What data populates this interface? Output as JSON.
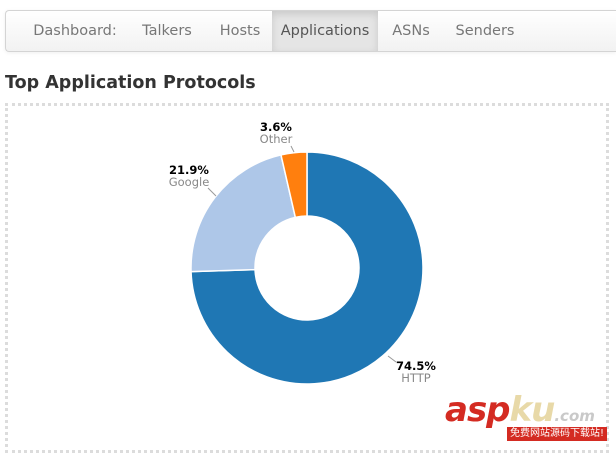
{
  "nav": {
    "items": [
      {
        "label": "Dashboard:",
        "active": false
      },
      {
        "label": "Talkers",
        "active": false
      },
      {
        "label": "Hosts",
        "active": false
      },
      {
        "label": "Applications",
        "active": true
      },
      {
        "label": "ASNs",
        "active": false
      },
      {
        "label": "Senders",
        "active": false
      }
    ]
  },
  "heading": "Top Application Protocols",
  "chart_data": {
    "type": "pie",
    "title": "",
    "donut": true,
    "slices": [
      {
        "name": "HTTP",
        "value": 74.5,
        "label": "74.5%",
        "color": "#1f77b4"
      },
      {
        "name": "Google",
        "value": 21.9,
        "label": "21.9%",
        "color": "#aec7e8"
      },
      {
        "name": "Other",
        "value": 3.6,
        "label": "3.6%",
        "color": "#ff7f0e"
      }
    ]
  },
  "watermark": {
    "brand_a": "asp",
    "brand_b": "ku",
    "brand_c": ".com",
    "tagline": "免费网站源码下载站!"
  }
}
